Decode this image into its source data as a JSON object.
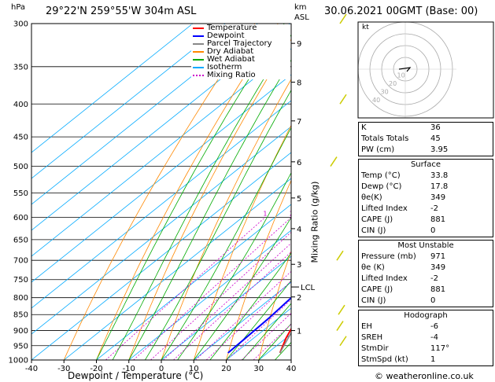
{
  "header": {
    "location": "29°22'N  259°55'W  304m  ASL",
    "datetime": "30.06.2021  00GMT  (Base: 00)"
  },
  "axes": {
    "y_unit": "hPa",
    "km_unit": "km",
    "km_unit2": "ASL",
    "x_label": "Dewpoint / Temperature (°C)",
    "mixing_label": "Mixing Ratio (g/kg)",
    "lcl_label": "LCL"
  },
  "hodograph": {
    "unit": "kt",
    "ring_labels": [
      "10",
      "20",
      "30",
      "40"
    ]
  },
  "legend": [
    {
      "label": "Temperature",
      "color": "#ff0000"
    },
    {
      "label": "Dewpoint",
      "color": "#0000ff"
    },
    {
      "label": "Parcel Trajectory",
      "color": "#888888"
    },
    {
      "label": "Dry Adiabat",
      "color": "#ff8800"
    },
    {
      "label": "Wet Adiabat",
      "color": "#00aa00"
    },
    {
      "label": "Isotherm",
      "color": "#00aaff"
    },
    {
      "label": "Mixing Ratio",
      "color": "#cc00cc"
    }
  ],
  "indices": [
    {
      "k": "K",
      "v": "36"
    },
    {
      "k": "Totals Totals",
      "v": "45"
    },
    {
      "k": "PW (cm)",
      "v": "3.95"
    }
  ],
  "surface": {
    "title": "Surface",
    "rows": [
      {
        "k": "Temp (°C)",
        "v": "33.8"
      },
      {
        "k": "Dewp (°C)",
        "v": "17.8"
      },
      {
        "k": "θe(K)",
        "v": "349"
      },
      {
        "k": "Lifted Index",
        "v": "-2"
      },
      {
        "k": "CAPE (J)",
        "v": "881"
      },
      {
        "k": "CIN (J)",
        "v": "0"
      }
    ]
  },
  "most_unstable": {
    "title": "Most Unstable",
    "rows": [
      {
        "k": "Pressure (mb)",
        "v": "971"
      },
      {
        "k": "θe (K)",
        "v": "349"
      },
      {
        "k": "Lifted Index",
        "v": "-2"
      },
      {
        "k": "CAPE (J)",
        "v": "881"
      },
      {
        "k": "CIN (J)",
        "v": "0"
      }
    ]
  },
  "hodo_table": {
    "title": "Hodograph",
    "rows": [
      {
        "k": "EH",
        "v": "-6"
      },
      {
        "k": "SREH",
        "v": "-4"
      },
      {
        "k": "StmDir",
        "v": "117°"
      },
      {
        "k": "StmSpd (kt)",
        "v": "1"
      }
    ]
  },
  "copyright": "© weatheronline.co.uk",
  "colors": {
    "temperature": "#ff0000",
    "dewpoint": "#0000ff",
    "parcel": "#888888",
    "dry_adiabat": "#ff8800",
    "wet_adiabat": "#00aa00",
    "isotherm": "#00aaff",
    "mixing_ratio": "#cc00cc",
    "wind_barb": "#cccc00"
  },
  "chart_data": {
    "type": "line",
    "title": "",
    "xlabel": "Dewpoint / Temperature (°C)",
    "ylabel": "hPa",
    "xlim": [
      -40,
      40
    ],
    "ylim": [
      1000,
      300
    ],
    "y_scale": "log",
    "pressure_ticks": [
      300,
      350,
      400,
      450,
      500,
      550,
      600,
      650,
      700,
      750,
      800,
      850,
      900,
      950,
      1000
    ],
    "temp_ticks": [
      -40,
      -30,
      -20,
      -10,
      0,
      10,
      20,
      30,
      40
    ],
    "km_ticks": [
      {
        "label": "9",
        "p": 322
      },
      {
        "label": "8",
        "p": 370
      },
      {
        "label": "7",
        "p": 425
      },
      {
        "label": "6",
        "p": 492
      },
      {
        "label": "5",
        "p": 560
      },
      {
        "label": "4",
        "p": 625
      },
      {
        "label": "3",
        "p": 710
      },
      {
        "label": "2",
        "p": 798
      },
      {
        "label": "1",
        "p": 900
      }
    ],
    "lcl_p": 770,
    "mixing_ratio_labels": [
      "1",
      "2",
      "3",
      "4",
      "5",
      "8",
      "10",
      "15",
      "20",
      "25"
    ],
    "series": [
      {
        "name": "Temperature",
        "points": [
          [
            33.8,
            975
          ],
          [
            30,
            925
          ],
          [
            25,
            850
          ],
          [
            21,
            790
          ],
          [
            19,
            740
          ],
          [
            15,
            680
          ],
          [
            13,
            640
          ],
          [
            11,
            600
          ],
          [
            8,
            550
          ],
          [
            4,
            500
          ],
          [
            0,
            460
          ],
          [
            -3,
            420
          ],
          [
            -7,
            390
          ],
          [
            -12,
            350
          ],
          [
            -17,
            320
          ],
          [
            -20,
            300
          ]
        ]
      },
      {
        "name": "Dewpoint",
        "points": [
          [
            17.8,
            975
          ],
          [
            17.5,
            925
          ],
          [
            17,
            860
          ],
          [
            16,
            800
          ],
          [
            15,
            760
          ],
          [
            14,
            720
          ],
          [
            12,
            680
          ],
          [
            10,
            660
          ],
          [
            7,
            640
          ],
          [
            9,
            620
          ],
          [
            5,
            600
          ],
          [
            3,
            580
          ],
          [
            2,
            565
          ],
          [
            5,
            550
          ],
          [
            -3,
            540
          ],
          [
            -12,
            520
          ],
          [
            -16,
            500
          ],
          [
            -18,
            480
          ],
          [
            -25,
            470
          ],
          [
            -20,
            460
          ],
          [
            -18,
            440
          ],
          [
            -20,
            420
          ],
          [
            -20,
            400
          ],
          [
            -32,
            390
          ],
          [
            -24,
            370
          ],
          [
            -22,
            345
          ],
          [
            -28,
            330
          ],
          [
            -20,
            320
          ],
          [
            -18,
            310
          ],
          [
            -15,
            300
          ]
        ]
      },
      {
        "name": "Parcel Trajectory",
        "points": [
          [
            33.8,
            975
          ],
          [
            27,
            870
          ],
          [
            22,
            780
          ],
          [
            19,
            720
          ],
          [
            16,
            660
          ],
          [
            13,
            600
          ],
          [
            10,
            550
          ],
          [
            6,
            500
          ],
          [
            2,
            450
          ],
          [
            -4,
            400
          ],
          [
            -9,
            360
          ],
          [
            -13,
            330
          ],
          [
            -16,
            300
          ]
        ]
      }
    ]
  }
}
